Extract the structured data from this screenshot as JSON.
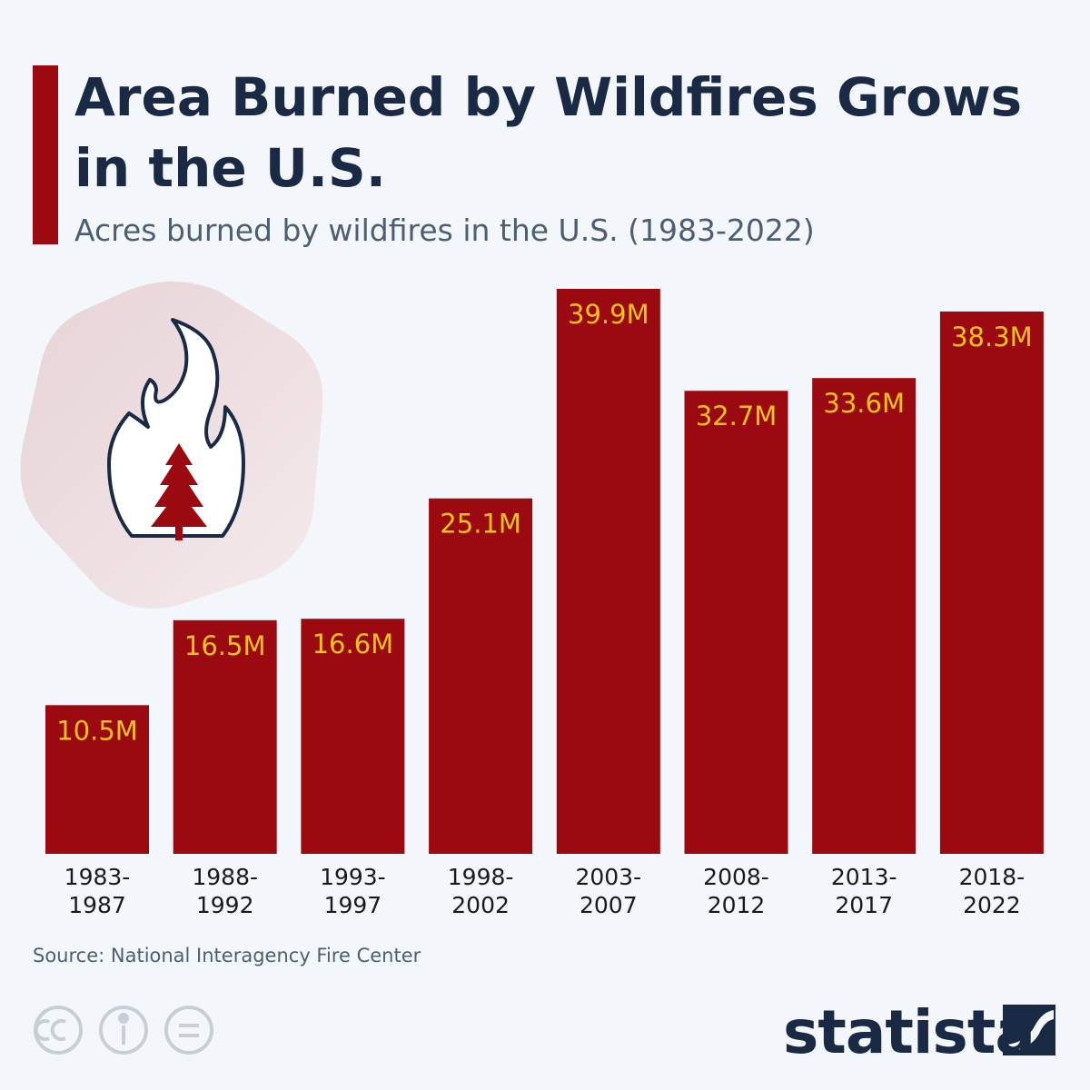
{
  "chart_data": {
    "type": "bar",
    "title": "Area Burned by Wildfires Grows in the U.S.",
    "subtitle": "Acres burned by wildfires in the U.S. (1983-2022)",
    "categories": [
      "1983-1987",
      "1988-1992",
      "1993-1997",
      "1998-2002",
      "2003-2007",
      "2008-2012",
      "2013-2017",
      "2018-2022"
    ],
    "values": [
      10.5,
      16.5,
      16.6,
      25.1,
      39.9,
      32.7,
      33.6,
      38.3
    ],
    "value_labels": [
      "10.5M",
      "16.5M",
      "16.6M",
      "25.1M",
      "39.9M",
      "32.7M",
      "33.6M",
      "38.3M"
    ],
    "color": "#9b0a10",
    "label_color": "#f7c21a",
    "source": "Source: National Interagency Fire Center",
    "logo": "statista"
  }
}
